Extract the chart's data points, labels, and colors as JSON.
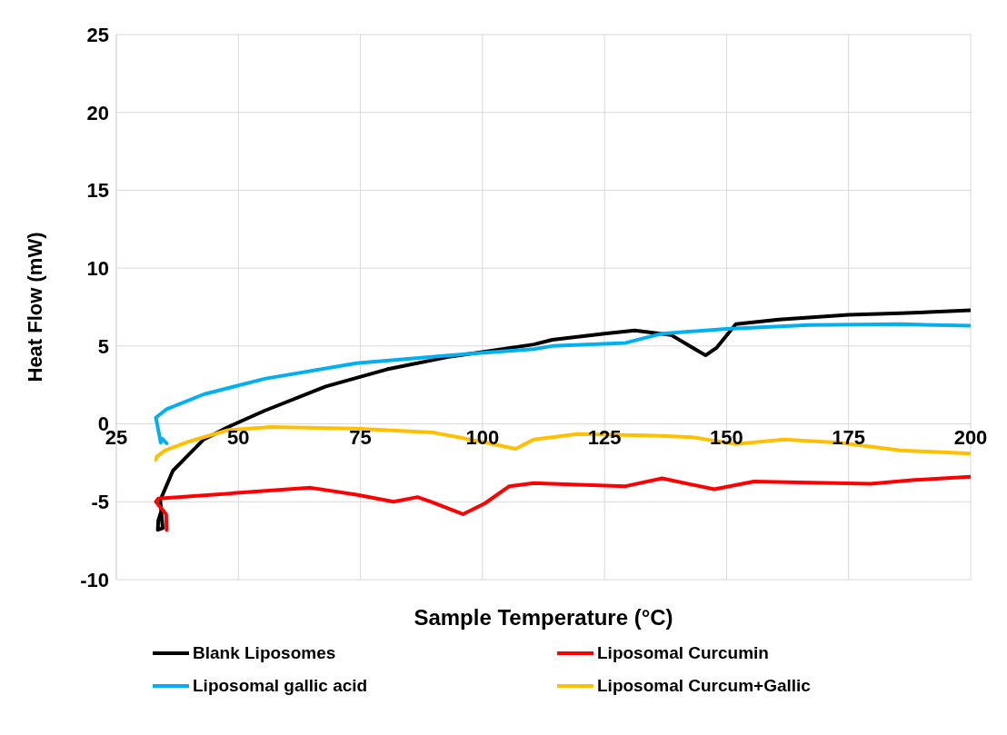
{
  "chart_data": {
    "type": "line",
    "xlabel": "Sample Temperature (°C)",
    "ylabel": "Heat Flow (mW)",
    "xlim": [
      25,
      200
    ],
    "xticks": [
      25,
      50,
      75,
      100,
      125,
      150,
      175,
      200
    ],
    "ylim": [
      -10,
      25
    ],
    "yticks": [
      -10,
      -5,
      0,
      5,
      10,
      15,
      20,
      25
    ],
    "grid": true,
    "legend": "bottom",
    "series": [
      {
        "name": "Blank Liposomes",
        "color": "#000000",
        "x": [
          34.2,
          33.6,
          33.5,
          34.5,
          34,
          36.6,
          42.9,
          47.9,
          55.4,
          67.9,
          80.4,
          93,
          110.5,
          114.3,
          125,
          131.2,
          138.7,
          145.7,
          148,
          151.9,
          160.7,
          175,
          185.7,
          200
        ],
        "values": [
          -5.6,
          -6.2,
          -6.8,
          -6.7,
          -4.9,
          -3.0,
          -1.0,
          -0.2,
          0.85,
          2.4,
          3.5,
          4.3,
          5.1,
          5.4,
          5.8,
          6.0,
          5.7,
          4.4,
          4.9,
          6.4,
          6.7,
          7.0,
          7.1,
          7.3
        ]
      },
      {
        "name": "Liposomal Curcumin",
        "color": "#ff0000",
        "x": [
          35.3,
          35.2,
          33.1,
          33.6,
          49,
          64.8,
          74.2,
          81.8,
          86.7,
          89.5,
          96,
          100.5,
          105.5,
          110.5,
          114.3,
          129.3,
          136.8,
          147.5,
          155.6,
          179.5,
          188.5,
          200
        ],
        "values": [
          -6.8,
          -5.8,
          -5.0,
          -4.8,
          -4.45,
          -4.1,
          -4.55,
          -5.0,
          -4.7,
          -5.0,
          -5.8,
          -5.1,
          -4.0,
          -3.8,
          -3.85,
          -4.0,
          -3.5,
          -4.2,
          -3.7,
          -3.85,
          -3.6,
          -3.4
        ]
      },
      {
        "name": "Liposomal gallic acid",
        "color": "#00b0f0",
        "x": [
          35.3,
          34.4,
          34.1,
          33.1,
          35.3,
          42.9,
          55.4,
          74.2,
          93,
          110.5,
          114.3,
          129.3,
          136.8,
          150,
          166.9,
          185.7,
          200
        ],
        "values": [
          -1.25,
          -0.95,
          -1.2,
          0.4,
          0.95,
          1.9,
          2.9,
          3.9,
          4.4,
          4.8,
          5.0,
          5.2,
          5.8,
          6.1,
          6.35,
          6.4,
          6.3
        ]
      },
      {
        "name": "Liposomal Curcum+Gallic",
        "color": "#ffc000",
        "x": [
          33.1,
          33.3,
          35,
          39.7,
          47.9,
          56.6,
          74.2,
          89.8,
          99.2,
          106.8,
          110.5,
          114.3,
          119.4,
          135.5,
          143,
          151.9,
          161.8,
          173.1,
          185.7,
          200
        ],
        "values": [
          -2.3,
          -2.1,
          -1.7,
          -1.15,
          -0.4,
          -0.2,
          -0.3,
          -0.55,
          -1.1,
          -1.6,
          -1.0,
          -0.85,
          -0.65,
          -0.75,
          -0.85,
          -1.3,
          -1.0,
          -1.2,
          -1.7,
          -1.9
        ]
      }
    ]
  }
}
